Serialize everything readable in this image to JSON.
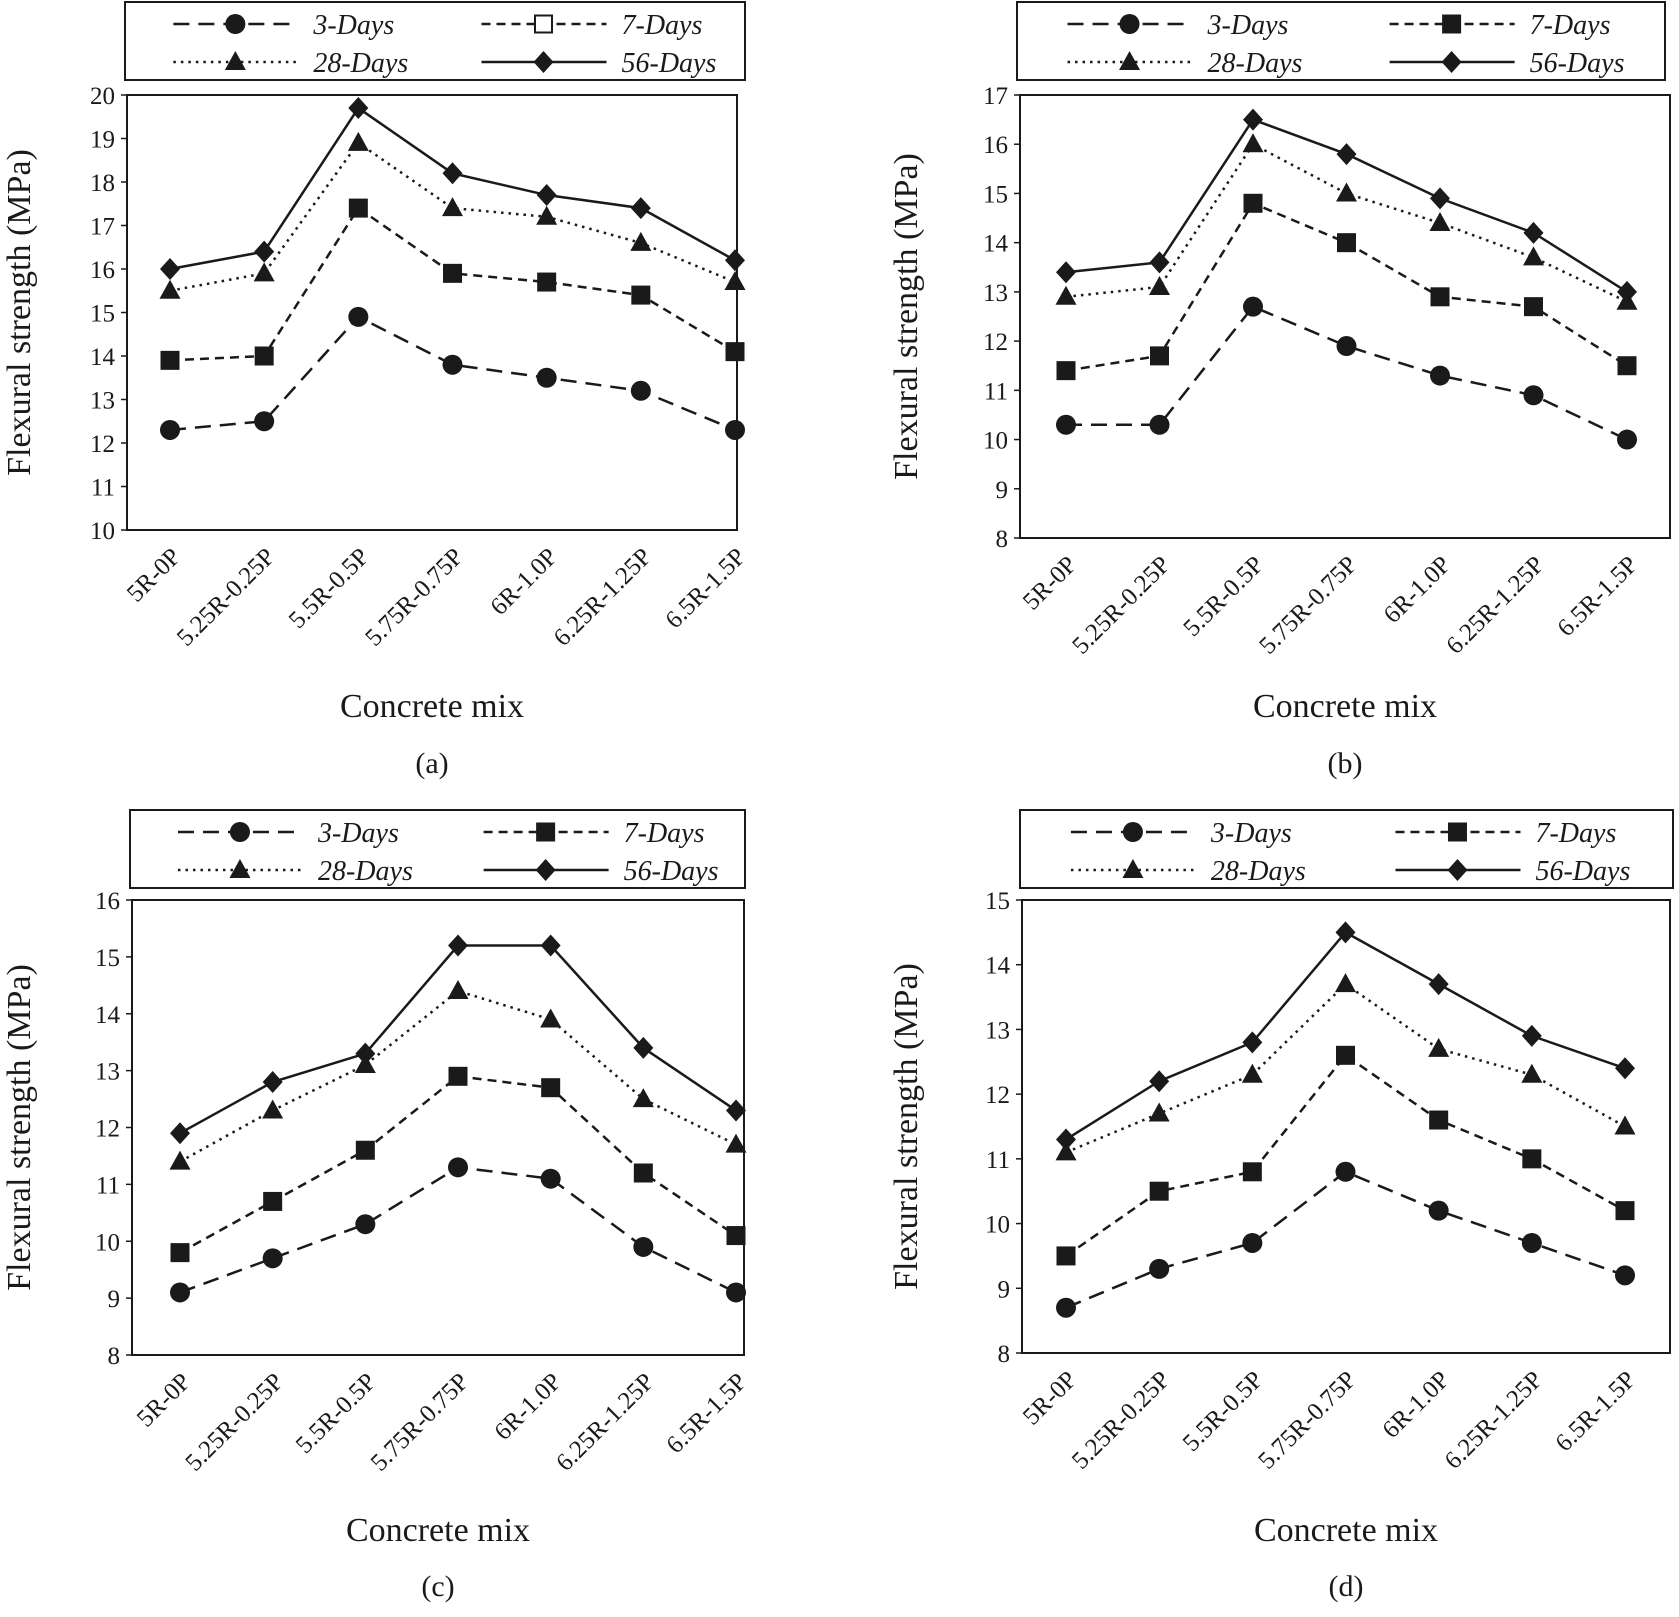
{
  "chart_data": [
    {
      "type": "line",
      "caption": "(a)",
      "xlabel": "Concrete mix",
      "ylabel": "Flexural strength (MPa)",
      "categories": [
        "5R-0P",
        "5.25R-0.25P",
        "5.5R-0.5P",
        "5.75R-0.75P",
        "6R-1.0P",
        "6.25R-1.25P",
        "6.5R-1.5P"
      ],
      "ylim": [
        10,
        20
      ],
      "yticks": [
        10,
        11,
        12,
        13,
        14,
        15,
        16,
        17,
        18,
        19,
        20
      ],
      "grid": false,
      "legend_position": "top",
      "series": [
        {
          "name": "3-Days",
          "marker": "circle",
          "line": "dashed",
          "values": [
            12.3,
            12.5,
            14.9,
            13.8,
            13.5,
            13.2,
            12.3
          ]
        },
        {
          "name": "7-Days",
          "marker": "square",
          "legend_marker": "open-square",
          "line": "short-dashed",
          "values": [
            13.9,
            14.0,
            17.4,
            15.9,
            15.7,
            15.4,
            14.1
          ]
        },
        {
          "name": "28-Days",
          "marker": "triangle",
          "line": "dotted",
          "values": [
            15.5,
            15.9,
            18.9,
            17.4,
            17.2,
            16.6,
            15.7
          ]
        },
        {
          "name": "56-Days",
          "marker": "diamond",
          "line": "solid",
          "values": [
            16.0,
            16.4,
            19.7,
            18.2,
            17.7,
            17.4,
            16.2
          ]
        }
      ]
    },
    {
      "type": "line",
      "caption": "(b)",
      "xlabel": "Concrete mix",
      "ylabel": "Flexural strength (MPa)",
      "categories": [
        "5R-0P",
        "5.25R-0.25P",
        "5.5R-0.5P",
        "5.75R-0.75P",
        "6R-1.0P",
        "6.25R-1.25P",
        "6.5R-1.5P"
      ],
      "ylim": [
        8,
        17
      ],
      "yticks": [
        8,
        9,
        10,
        11,
        12,
        13,
        14,
        15,
        16,
        17
      ],
      "grid": false,
      "legend_position": "top",
      "series": [
        {
          "name": "3-Days",
          "marker": "circle",
          "line": "dashed",
          "values": [
            10.3,
            10.3,
            12.7,
            11.9,
            11.3,
            10.9,
            10.0
          ]
        },
        {
          "name": "7-Days",
          "marker": "square",
          "line": "short-dashed",
          "values": [
            11.4,
            11.7,
            14.8,
            14.0,
            12.9,
            12.7,
            11.5
          ]
        },
        {
          "name": "28-Days",
          "marker": "triangle",
          "line": "dotted",
          "values": [
            12.9,
            13.1,
            16.0,
            15.0,
            14.4,
            13.7,
            12.8
          ]
        },
        {
          "name": "56-Days",
          "marker": "diamond",
          "line": "solid",
          "values": [
            13.4,
            13.6,
            16.5,
            15.8,
            14.9,
            14.2,
            13.0
          ]
        }
      ]
    },
    {
      "type": "line",
      "caption": "(c)",
      "xlabel": "Concrete mix",
      "ylabel": "Flexural strength (MPa)",
      "categories": [
        "5R-0P",
        "5.25R-0.25P",
        "5.5R-0.5P",
        "5.75R-0.75P",
        "6R-1.0P",
        "6.25R-1.25P",
        "6.5R-1.5P"
      ],
      "ylim": [
        8,
        16
      ],
      "yticks": [
        8,
        9,
        10,
        11,
        12,
        13,
        14,
        15,
        16
      ],
      "grid": false,
      "legend_position": "top",
      "series": [
        {
          "name": "3-Days",
          "marker": "circle",
          "line": "dashed",
          "values": [
            9.1,
            9.7,
            10.3,
            11.3,
            11.1,
            9.9,
            9.1
          ]
        },
        {
          "name": "7-Days",
          "marker": "square",
          "line": "short-dashed",
          "values": [
            9.8,
            10.7,
            11.6,
            12.9,
            12.7,
            11.2,
            10.1
          ]
        },
        {
          "name": "28-Days",
          "marker": "triangle",
          "line": "dotted",
          "values": [
            11.4,
            12.3,
            13.1,
            14.4,
            13.9,
            12.5,
            11.7
          ]
        },
        {
          "name": "56-Days",
          "marker": "diamond",
          "line": "solid",
          "values": [
            11.9,
            12.8,
            13.3,
            15.2,
            15.2,
            13.4,
            12.3
          ]
        }
      ]
    },
    {
      "type": "line",
      "caption": "(d)",
      "xlabel": "Concrete mix",
      "ylabel": "Flexural strength (MPa)",
      "categories": [
        "5R-0P",
        "5.25R-0.25P",
        "5.5R-0.5P",
        "5.75R-0.75P",
        "6R-1.0P",
        "6.25R-1.25P",
        "6.5R-1.5P"
      ],
      "ylim": [
        8,
        15
      ],
      "yticks": [
        8,
        9,
        10,
        11,
        12,
        13,
        14,
        15
      ],
      "grid": false,
      "legend_position": "top",
      "series": [
        {
          "name": "3-Days",
          "marker": "circle",
          "line": "dashed",
          "values": [
            8.7,
            9.3,
            9.7,
            10.8,
            10.2,
            9.7,
            9.2
          ]
        },
        {
          "name": "7-Days",
          "marker": "square",
          "line": "short-dashed",
          "values": [
            9.5,
            10.5,
            10.8,
            12.6,
            11.6,
            11.0,
            10.2
          ]
        },
        {
          "name": "28-Days",
          "marker": "triangle",
          "line": "dotted",
          "values": [
            11.1,
            11.7,
            12.3,
            13.7,
            12.7,
            12.3,
            11.5
          ]
        },
        {
          "name": "56-Days",
          "marker": "diamond",
          "line": "solid",
          "values": [
            11.3,
            12.2,
            12.8,
            14.5,
            13.7,
            12.9,
            12.4
          ]
        }
      ]
    }
  ]
}
